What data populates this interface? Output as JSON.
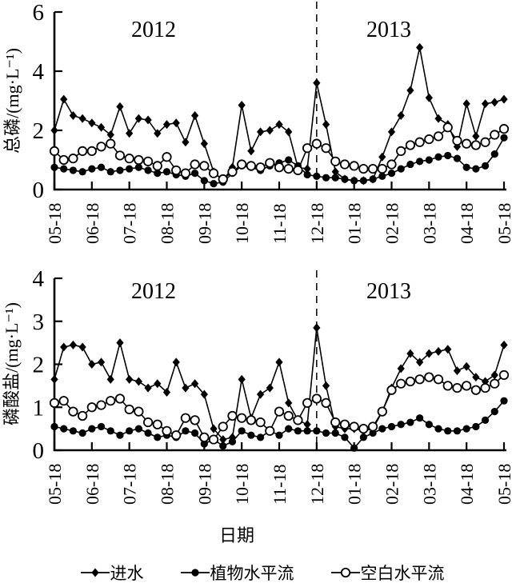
{
  "figure": {
    "background": "#ffffff",
    "ink_color": "#000000",
    "xlabel": "日期",
    "legend": [
      {
        "label": "进水",
        "marker": "diamond"
      },
      {
        "label": "植物水平流",
        "marker": "filled-circle"
      },
      {
        "label": "空白水平流",
        "marker": "open-circle"
      }
    ]
  },
  "chart_data": [
    {
      "type": "line",
      "panel": "top",
      "title": "",
      "xlabel": "",
      "ylabel": "总磷/(mg·L⁻¹)",
      "ylim": [
        0,
        6
      ],
      "yticks": [
        0,
        2,
        4,
        6
      ],
      "x_tick_labels": [
        "05-18",
        "06-18",
        "07-18",
        "08-18",
        "09-18",
        "10-18",
        "11-18",
        "12-18",
        "01-18",
        "02-18",
        "03-18",
        "04-18",
        "05-18"
      ],
      "year_annotations": [
        "2012",
        "2013"
      ],
      "divider": {
        "at_tick": "12-18",
        "style": "dashed"
      },
      "grid": false,
      "points_per_month": 4,
      "series": [
        {
          "id": "influent",
          "name": "进水",
          "marker": "diamond",
          "values": [
            2.0,
            3.05,
            2.5,
            2.4,
            2.25,
            2.1,
            1.85,
            2.8,
            1.9,
            2.4,
            2.35,
            1.9,
            2.2,
            2.25,
            1.6,
            2.5,
            1.55,
            0.6,
            0.3,
            0.75,
            2.85,
            1.3,
            1.95,
            2.0,
            2.2,
            1.95,
            0.75,
            0.7,
            3.6,
            2.2,
            0.6,
            0.35,
            0.3,
            0.3,
            0.35,
            1.1,
            1.95,
            2.5,
            3.35,
            4.8,
            3.1,
            2.4,
            2.2,
            1.45,
            2.9,
            1.8,
            2.9,
            2.95,
            3.05
          ]
        },
        {
          "id": "plant-horizontal-flow",
          "name": "植物水平流",
          "marker": "filled-circle",
          "values": [
            0.75,
            0.7,
            0.65,
            0.6,
            0.7,
            0.75,
            0.6,
            0.65,
            0.7,
            0.75,
            0.65,
            0.55,
            0.6,
            0.5,
            0.45,
            0.55,
            0.3,
            0.2,
            0.25,
            0.55,
            0.8,
            0.75,
            0.65,
            0.8,
            0.9,
            1.0,
            0.8,
            0.5,
            0.45,
            0.4,
            0.4,
            0.35,
            0.3,
            0.3,
            0.35,
            0.45,
            0.55,
            0.7,
            0.85,
            0.95,
            1.0,
            1.1,
            1.15,
            1.05,
            0.75,
            0.7,
            0.8,
            1.2,
            1.75
          ]
        },
        {
          "id": "blank-horizontal-flow",
          "name": "空白水平流",
          "marker": "open-circle",
          "values": [
            1.3,
            1.0,
            1.05,
            1.3,
            1.3,
            1.45,
            1.55,
            1.15,
            1.05,
            1.0,
            0.95,
            0.8,
            1.1,
            0.65,
            0.55,
            0.85,
            0.8,
            0.55,
            0.35,
            0.6,
            0.85,
            0.8,
            0.75,
            0.9,
            0.75,
            0.7,
            0.65,
            1.4,
            1.55,
            1.4,
            0.95,
            0.85,
            0.8,
            0.7,
            0.7,
            0.7,
            0.85,
            1.3,
            1.5,
            1.6,
            1.7,
            1.8,
            2.1,
            1.65,
            1.55,
            1.5,
            1.6,
            1.85,
            2.05
          ]
        }
      ]
    },
    {
      "type": "line",
      "panel": "bottom",
      "title": "",
      "xlabel": "日期",
      "ylabel": "磷酸盐/(mg·L⁻¹)",
      "ylim": [
        0,
        4
      ],
      "yticks": [
        0,
        1,
        2,
        3,
        4
      ],
      "x_tick_labels": [
        "05-18",
        "06-18",
        "07-18",
        "08-18",
        "09-18",
        "10-18",
        "11-18",
        "12-18",
        "01-18",
        "02-18",
        "03-18",
        "04-18",
        "05-18"
      ],
      "year_annotations": [
        "2012",
        "2013"
      ],
      "divider": {
        "at_tick": "12-18",
        "style": "dashed"
      },
      "grid": false,
      "points_per_month": 4,
      "series": [
        {
          "id": "influent",
          "name": "进水",
          "marker": "diamond",
          "values": [
            1.65,
            2.4,
            2.45,
            2.4,
            2.0,
            2.05,
            1.65,
            2.5,
            1.65,
            1.6,
            1.45,
            1.55,
            1.35,
            2.05,
            1.45,
            1.55,
            1.3,
            0.5,
            0.25,
            0.3,
            1.65,
            0.75,
            1.3,
            1.45,
            2.05,
            1.1,
            0.7,
            0.6,
            2.85,
            1.5,
            0.55,
            0.5,
            0.5,
            0.45,
            0.5,
            0.9,
            1.45,
            1.9,
            2.25,
            2.05,
            2.25,
            2.3,
            2.35,
            1.85,
            1.95,
            1.7,
            1.6,
            1.75,
            2.45
          ]
        },
        {
          "id": "plant-horizontal-flow",
          "name": "植物水平流",
          "marker": "filled-circle",
          "values": [
            0.55,
            0.5,
            0.45,
            0.4,
            0.5,
            0.55,
            0.45,
            0.35,
            0.45,
            0.5,
            0.4,
            0.3,
            0.35,
            0.3,
            0.45,
            0.4,
            0.15,
            0.25,
            0.1,
            0.2,
            0.45,
            0.35,
            0.3,
            0.45,
            0.35,
            0.5,
            0.45,
            0.45,
            0.45,
            0.4,
            0.4,
            0.3,
            0.05,
            0.3,
            0.4,
            0.5,
            0.55,
            0.6,
            0.65,
            0.75,
            0.6,
            0.5,
            0.45,
            0.45,
            0.5,
            0.55,
            0.7,
            0.9,
            1.15
          ]
        },
        {
          "id": "blank-horizontal-flow",
          "name": "空白水平流",
          "marker": "open-circle",
          "values": [
            1.1,
            1.15,
            0.9,
            0.8,
            1.0,
            1.05,
            1.15,
            1.2,
            0.95,
            0.9,
            0.65,
            0.6,
            0.45,
            0.35,
            0.75,
            0.7,
            0.3,
            0.25,
            0.55,
            0.8,
            0.75,
            0.7,
            0.65,
            0.45,
            0.9,
            0.8,
            0.7,
            1.1,
            1.2,
            1.1,
            0.65,
            0.6,
            0.55,
            0.5,
            0.55,
            0.9,
            1.4,
            1.55,
            1.6,
            1.65,
            1.7,
            1.65,
            1.5,
            1.45,
            1.5,
            1.4,
            1.45,
            1.55,
            1.75
          ]
        }
      ]
    }
  ]
}
